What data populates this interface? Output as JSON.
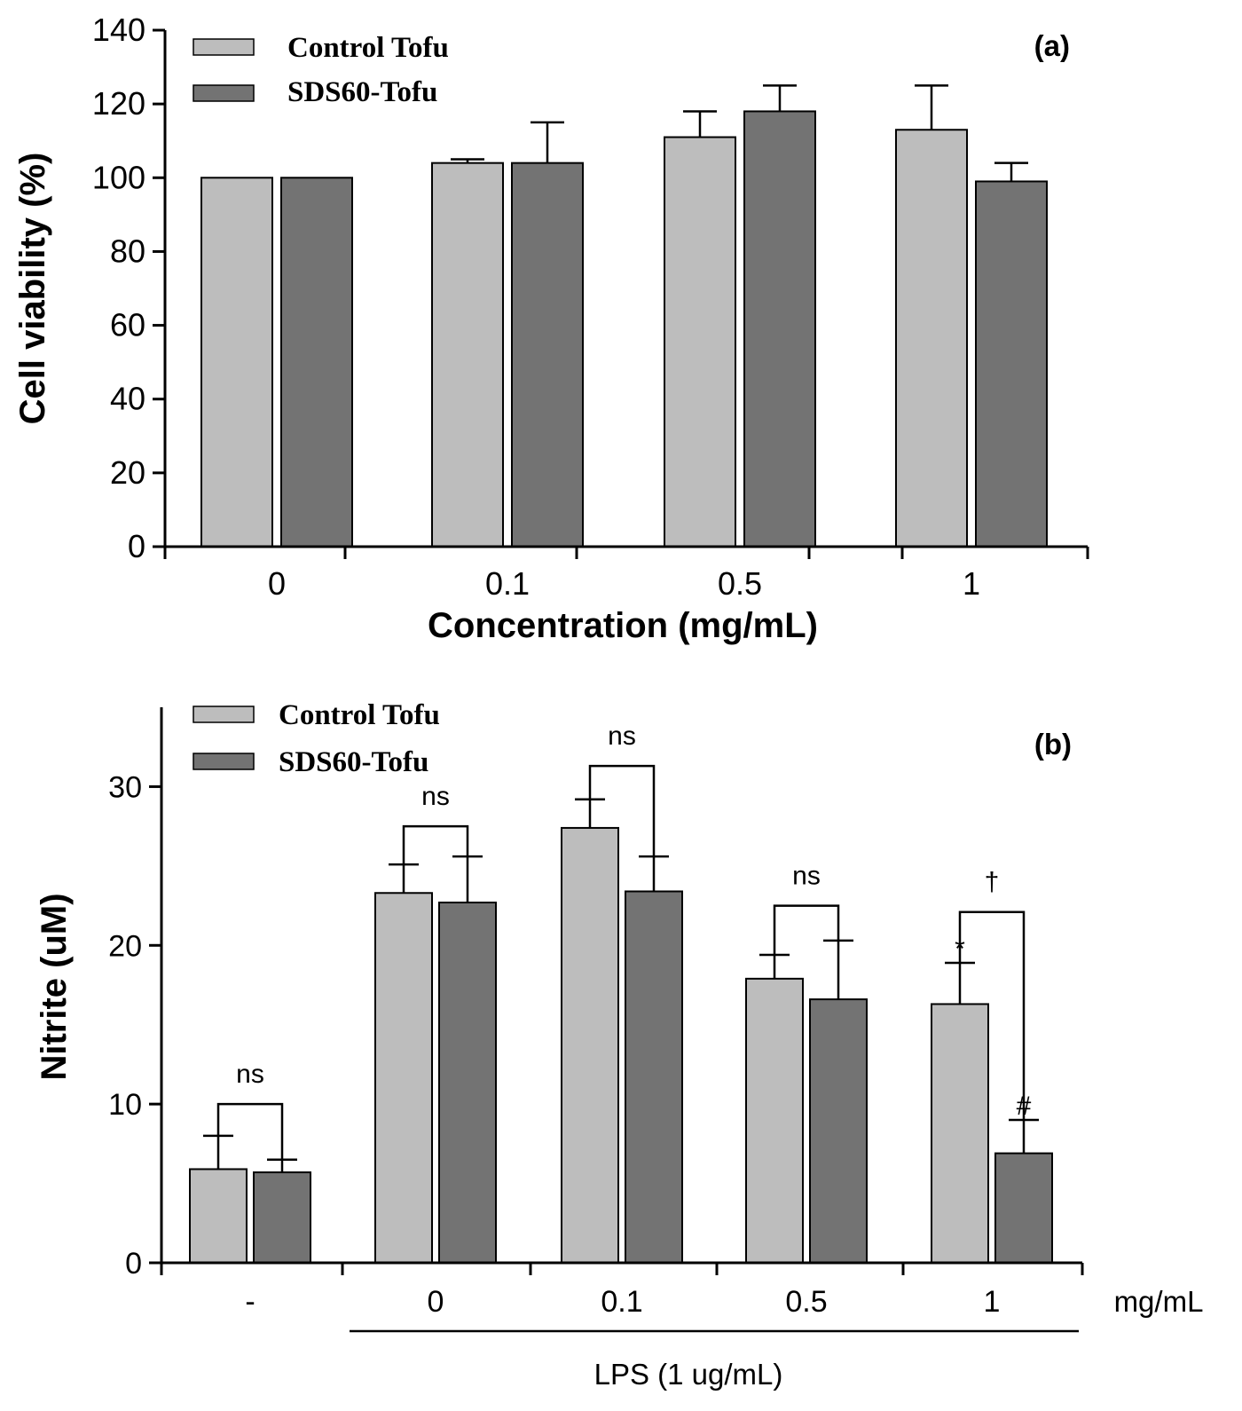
{
  "colors": {
    "control": "#bdbdbd",
    "sds60": "#737373",
    "axis": "#000000"
  },
  "chart_data": [
    {
      "type": "bar",
      "panel_label": "(a)",
      "categories": [
        "0",
        "0.1",
        "0.5",
        "1"
      ],
      "series": [
        {
          "name": "Control Tofu",
          "values": [
            100,
            104,
            111,
            113
          ],
          "errors": [
            0,
            1,
            7,
            12
          ]
        },
        {
          "name": "SDS60-Tofu",
          "values": [
            100,
            104,
            118,
            99
          ],
          "errors": [
            0,
            11,
            7,
            5
          ]
        }
      ],
      "xlabel": "Concentration (mg/mL)",
      "ylabel": "Cell viability (%)",
      "ylim": [
        0,
        140
      ],
      "yticks": [
        0,
        20,
        40,
        60,
        80,
        100,
        120,
        140
      ],
      "grid": false,
      "legend": "top-left"
    },
    {
      "type": "bar",
      "panel_label": "(b)",
      "categories": [
        "-",
        "0",
        "0.1",
        "0.5",
        "1"
      ],
      "series": [
        {
          "name": "Control Tofu",
          "values": [
            5.9,
            23.3,
            27.4,
            17.9,
            16.3
          ],
          "errors": [
            2.1,
            1.8,
            1.8,
            1.5,
            2.6
          ]
        },
        {
          "name": "SDS60-Tofu",
          "values": [
            5.7,
            22.7,
            23.4,
            16.6,
            6.9
          ],
          "errors": [
            0.8,
            2.9,
            2.2,
            3.7,
            2.1
          ]
        }
      ],
      "x_unit": "mg/mL",
      "group_label": "LPS (1 ug/mL)",
      "ylabel": "Nitrite (uM)",
      "ylim": [
        0,
        35
      ],
      "yticks": [
        0,
        10,
        20,
        30
      ],
      "grid": false,
      "legend": "top-left",
      "comparisons": [
        {
          "category": 0,
          "label": "ns",
          "bracket_y": 10
        },
        {
          "category": 1,
          "label": "ns",
          "bracket_y": 27.5
        },
        {
          "category": 2,
          "label": "ns",
          "bracket_y": 31.3
        },
        {
          "category": 3,
          "label": "ns",
          "bracket_y": 22.5
        },
        {
          "category": 4,
          "label": "†",
          "bracket_y": 22.1
        }
      ],
      "markers": [
        {
          "category": 4,
          "series": 0,
          "label": "*"
        },
        {
          "category": 4,
          "series": 1,
          "label": "#"
        }
      ]
    }
  ]
}
